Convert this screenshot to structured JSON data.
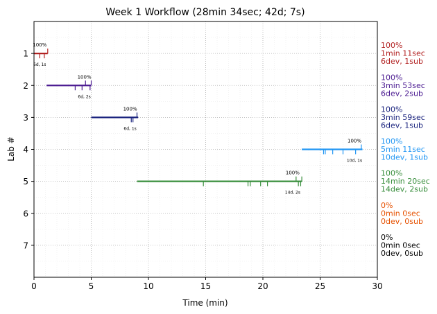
{
  "chart_data": {
    "type": "timeline",
    "title": "Week 1 Workflow (28min 34sec; 42d; 7s)",
    "xlabel": "Time (min)",
    "ylabel": "Lab #",
    "xlim": [
      0,
      30
    ],
    "ylim": [
      8,
      0
    ],
    "xticks": [
      0,
      5,
      10,
      15,
      20,
      25,
      30
    ],
    "yticks": [
      1,
      2,
      3,
      4,
      5,
      6,
      7
    ],
    "grid": true,
    "labs": [
      {
        "lab": 1,
        "color": "#b22222",
        "start": 0.0,
        "end": 1.2,
        "pct_label": "100%",
        "pct_x": 0.5,
        "count_label": "6d, 1s",
        "count_x": 0.5,
        "dev_ticks": [
          0.5,
          0.9
        ],
        "sub_ticks": [
          1.2
        ],
        "side_labels": [
          "100%",
          "1min 11sec",
          "6dev, 1sub"
        ]
      },
      {
        "lab": 2,
        "color": "#4b1b91",
        "start": 1.1,
        "end": 5.0,
        "pct_label": "100%",
        "pct_x": 4.4,
        "count_label": "6d, 2s",
        "count_x": 4.4,
        "dev_ticks": [
          3.6,
          4.2,
          4.9
        ],
        "sub_ticks": [
          4.5,
          5.0
        ],
        "side_labels": [
          "100%",
          "3min 53sec",
          "6dev, 2sub"
        ]
      },
      {
        "lab": 3,
        "color": "#1a237e",
        "start": 5.0,
        "end": 9.1,
        "pct_label": "100%",
        "pct_x": 8.4,
        "count_label": "6d, 1s",
        "count_x": 8.4,
        "dev_ticks": [
          8.5,
          8.65
        ],
        "sub_ticks": [
          9.0
        ],
        "side_labels": [
          "100%",
          "3min 59sec",
          "6dev, 1sub"
        ]
      },
      {
        "lab": 4,
        "color": "#2196f3",
        "start": 23.4,
        "end": 28.7,
        "pct_label": "100%",
        "pct_x": 28.0,
        "count_label": "10d, 1s",
        "count_x": 28.0,
        "dev_ticks": [
          25.3,
          25.45,
          26.1,
          27.0,
          28.1
        ],
        "sub_ticks": [
          28.6
        ],
        "side_labels": [
          "100%",
          "5min 11sec",
          "10dev, 1sub"
        ]
      },
      {
        "lab": 5,
        "color": "#388e3c",
        "start": 9.0,
        "end": 23.4,
        "pct_label": "100%",
        "pct_x": 22.6,
        "count_label": "14d, 2s",
        "count_x": 22.6,
        "dev_ticks": [
          14.8,
          18.7,
          18.9,
          19.8,
          20.4,
          23.1,
          23.3
        ],
        "sub_ticks": [
          22.9,
          23.4
        ],
        "side_labels": [
          "100%",
          "14min 20sec",
          "14dev, 2sub"
        ]
      },
      {
        "lab": 6,
        "color": "#e65100",
        "start": null,
        "end": null,
        "side_labels": [
          "0%",
          "0min 0sec",
          "0dev, 0sub"
        ]
      },
      {
        "lab": 7,
        "color": "#000000",
        "start": null,
        "end": null,
        "side_labels": [
          "0%",
          "0min 0sec",
          "0dev, 0sub"
        ]
      }
    ]
  }
}
